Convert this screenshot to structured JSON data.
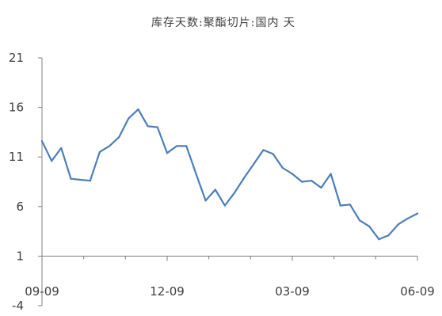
{
  "chart_data": {
    "type": "line",
    "title": "库存天数:聚酯切片:国内 天",
    "xlabel": "",
    "ylabel": "",
    "ylim": [
      -4,
      21
    ],
    "yticks": [
      -4,
      1,
      6,
      11,
      16,
      21
    ],
    "xtick_labels": [
      "09-09",
      "12-09",
      "03-09",
      "06-09"
    ],
    "grid": false,
    "legend": "none",
    "colors": {
      "line": "#4a7ebb",
      "axis": "#808080",
      "text": "#404040"
    },
    "series": [
      {
        "values": [
          12.6,
          10.6,
          11.9,
          8.8,
          8.7,
          8.6,
          11.5,
          12.1,
          13,
          14.9,
          15.8,
          14.1,
          14,
          11.4,
          12.1,
          12.1,
          9.3,
          6.6,
          7.7,
          6.1,
          7.4,
          8.9,
          10.3,
          11.7,
          11.3,
          9.9,
          9.3,
          8.5,
          8.6,
          7.9,
          9.3,
          6.1,
          6.2,
          4.6,
          4,
          2.7,
          3.1,
          4.2,
          4.8,
          5.3
        ]
      }
    ]
  }
}
